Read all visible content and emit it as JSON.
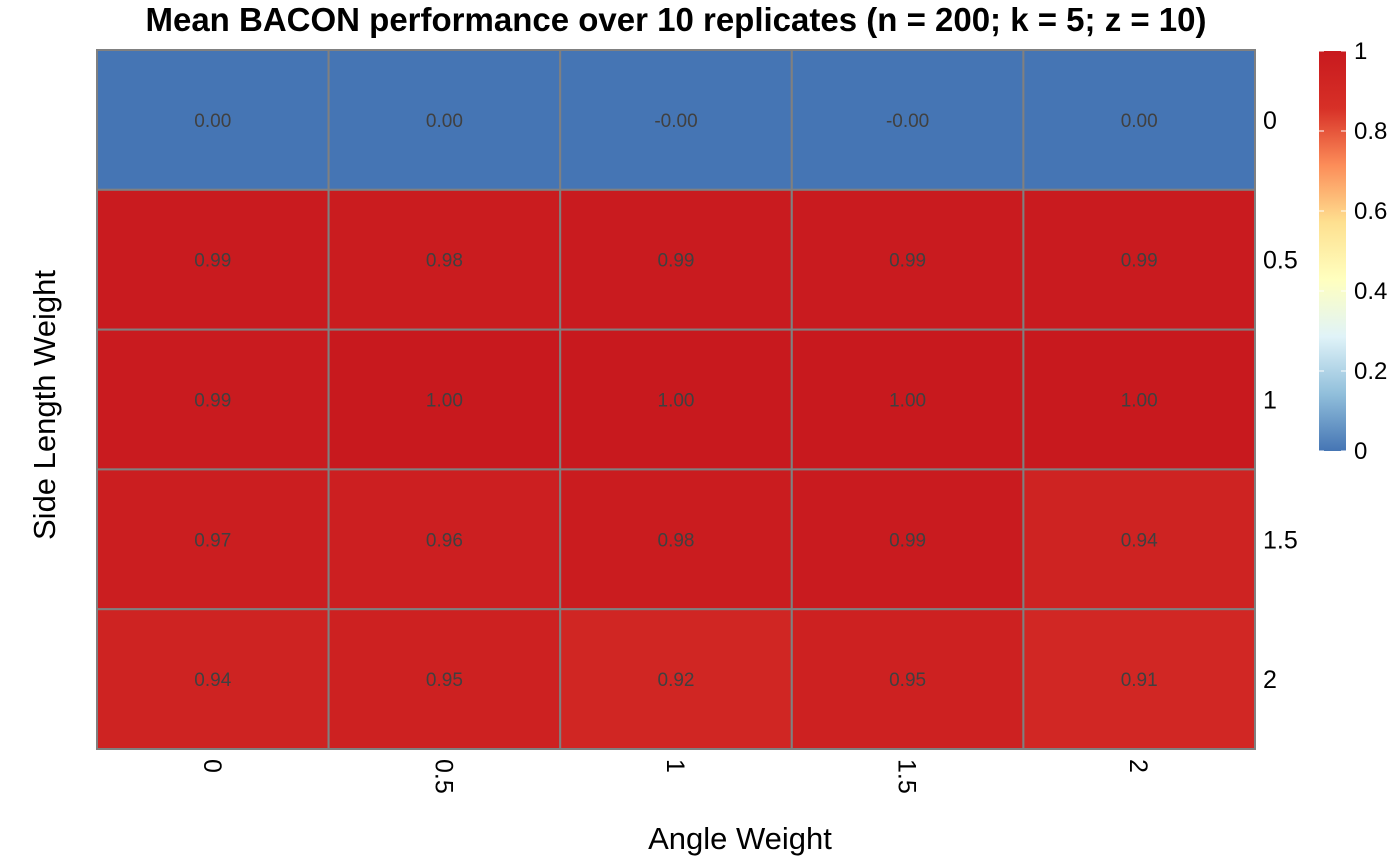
{
  "chart_data": {
    "type": "heatmap",
    "title": "Mean BACON performance over 10 replicates (n = 200; k = 5; z = 10)",
    "xlabel": "Angle Weight",
    "ylabel": "Side Length Weight",
    "x_categories": [
      "0",
      "0.5",
      "1",
      "1.5",
      "2"
    ],
    "y_categories": [
      "0",
      "0.5",
      "1",
      "1.5",
      "2"
    ],
    "values": [
      [
        0.0,
        0.0,
        -0.0,
        -0.0,
        0.0
      ],
      [
        0.99,
        0.98,
        0.99,
        0.99,
        0.99
      ],
      [
        0.99,
        1.0,
        1.0,
        1.0,
        1.0
      ],
      [
        0.97,
        0.96,
        0.98,
        0.99,
        0.94
      ],
      [
        0.94,
        0.95,
        0.92,
        0.95,
        0.91
      ]
    ],
    "cell_labels": [
      [
        "0.00",
        "0.00",
        "-0.00",
        "-0.00",
        "0.00"
      ],
      [
        "0.99",
        "0.98",
        "0.99",
        "0.99",
        "0.99"
      ],
      [
        "0.99",
        "1.00",
        "1.00",
        "1.00",
        "1.00"
      ],
      [
        "0.97",
        "0.96",
        "0.98",
        "0.99",
        "0.94"
      ],
      [
        "0.94",
        "0.95",
        "0.92",
        "0.95",
        "0.91"
      ]
    ],
    "color_scale": {
      "min": 0,
      "max": 1,
      "ticks": [
        "0",
        "0.2",
        "0.4",
        "0.6",
        "0.8",
        "1"
      ],
      "colors": [
        "#4575B4",
        "#91BFDB",
        "#E0F3F8",
        "#FFFFBF",
        "#FEE090",
        "#FC8D59",
        "#D73027",
        "#C8191E"
      ]
    },
    "legend_placement": "right",
    "grid_color": "#808080"
  }
}
